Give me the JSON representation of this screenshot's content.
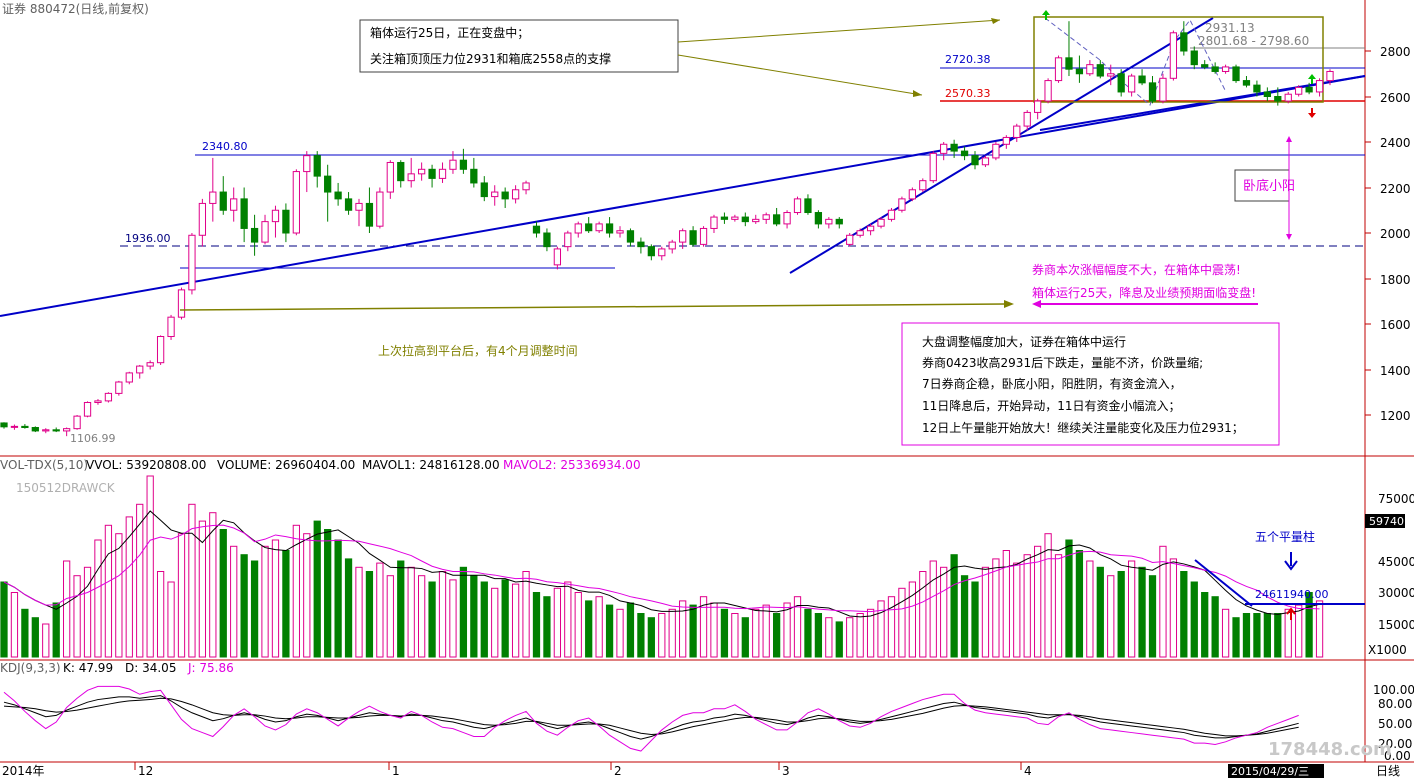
{
  "header": {
    "security": "证券 880472(日线,前复权)"
  },
  "price_panel": {
    "y_ticks": [
      "2800",
      "2600",
      "2400",
      "2200",
      "2000",
      "1800",
      "1600",
      "1400",
      "1200"
    ],
    "labels": {
      "high_2931": "2931.13",
      "range_label": "2801.68 - 2798.60",
      "level_2720": "2720.38",
      "level_2570": "2570.33",
      "level_2340": "2340.80",
      "level_1936": "1936.00",
      "low_1106": "1106.99"
    },
    "annotations": {
      "box_note_line1": "箱体运行25日，正在变盘中；",
      "box_note_line2": "关注箱顶顶压力位2931和箱底2558点的支撑",
      "low_yang": "卧底小阳",
      "pink_note_1": "券商本次涨幅幅度不大，在箱体中震荡!",
      "pink_note_2": "箱体运行25天，降息及业绩预期面临变盘!",
      "olive_note": "上次拉高到平台后，有4个月调整时间",
      "market_lines": [
        "大盘调整幅度加大，证券在箱体中运行",
        "券商0423收高2931后下跌走，量能不济，价跌量缩;",
        "7日券商企稳，卧底小阳，阳胜阴，有资金流入，",
        "11日降息后，开始异动，11日有资金小幅流入；",
        "12日上午量能开始放大！继续关注量能变化及压力位2931；"
      ]
    }
  },
  "volume_panel": {
    "header": {
      "indicator": "VOL-TDX(5,10)",
      "vvol": "VVOL: 53920808.00",
      "volume": "VOLUME: 26960404.00",
      "mavol1": "MAVOL1: 24816128.00",
      "mavol2": "MAVOL2: 25336934.00"
    },
    "watermark": "150512DRAWCK",
    "y_ticks": [
      "75000",
      "45000",
      "30000",
      "15000"
    ],
    "badge": "59740",
    "unit": "X1000",
    "five_bars_note": "五个平量柱",
    "level_label": "24611940.00"
  },
  "kdj_panel": {
    "header": {
      "indicator": "KDJ(9,3,3)",
      "k": "K: 47.99",
      "d": "D: 34.05",
      "j": "J: 75.86"
    },
    "y_ticks": [
      "100.00",
      "80.00",
      "50.00",
      "20.00",
      "0.00"
    ]
  },
  "x_axis": {
    "labels": [
      "2014年",
      "12",
      "1",
      "2",
      "3",
      "4"
    ],
    "date_badge": "2015/04/29/三",
    "period": "日线",
    "site": "178448.com"
  },
  "colors": {
    "up": "#e0008a",
    "down": "#008000",
    "line_blue": "#0000c8",
    "olive": "#808000",
    "magenta": "#e000e0",
    "red": "#e00000"
  },
  "chart_data": {
    "type": "candlestick",
    "title": "证券 880472(日线,前复权)",
    "y_range": [
      1080,
      2940
    ],
    "candles": [
      [
        1165,
        1168,
        1140,
        1148
      ],
      [
        1148,
        1158,
        1135,
        1150
      ],
      [
        1150,
        1160,
        1140,
        1145
      ],
      [
        1145,
        1150,
        1125,
        1130
      ],
      [
        1130,
        1142,
        1120,
        1135
      ],
      [
        1135,
        1145,
        1125,
        1130
      ],
      [
        1130,
        1145,
        1107,
        1140
      ],
      [
        1140,
        1200,
        1135,
        1195
      ],
      [
        1195,
        1260,
        1190,
        1255
      ],
      [
        1255,
        1270,
        1245,
        1262
      ],
      [
        1262,
        1300,
        1255,
        1295
      ],
      [
        1295,
        1350,
        1285,
        1345
      ],
      [
        1345,
        1390,
        1335,
        1385
      ],
      [
        1385,
        1420,
        1360,
        1415
      ],
      [
        1415,
        1440,
        1400,
        1430
      ],
      [
        1430,
        1550,
        1420,
        1545
      ],
      [
        1545,
        1640,
        1530,
        1630
      ],
      [
        1630,
        1760,
        1620,
        1750
      ],
      [
        1750,
        2000,
        1730,
        1990
      ],
      [
        1990,
        2150,
        1940,
        2130
      ],
      [
        2130,
        2330,
        2050,
        2180
      ],
      [
        2180,
        2250,
        2080,
        2100
      ],
      [
        2100,
        2200,
        2050,
        2150
      ],
      [
        2150,
        2200,
        1960,
        2020
      ],
      [
        2020,
        2080,
        1900,
        1960
      ],
      [
        1960,
        2080,
        1950,
        2050
      ],
      [
        2050,
        2120,
        1980,
        2100
      ],
      [
        2100,
        2130,
        1960,
        2000
      ],
      [
        2000,
        2280,
        1990,
        2270
      ],
      [
        2270,
        2360,
        2180,
        2340
      ],
      [
        2340,
        2360,
        2200,
        2250
      ],
      [
        2250,
        2300,
        2050,
        2180
      ],
      [
        2180,
        2220,
        2120,
        2150
      ],
      [
        2150,
        2180,
        2080,
        2100
      ],
      [
        2100,
        2150,
        2030,
        2130
      ],
      [
        2130,
        2200,
        2000,
        2030
      ],
      [
        2030,
        2200,
        2020,
        2180
      ],
      [
        2180,
        2320,
        2150,
        2310
      ],
      [
        2310,
        2320,
        2200,
        2230
      ],
      [
        2230,
        2330,
        2200,
        2260
      ],
      [
        2260,
        2310,
        2230,
        2280
      ],
      [
        2280,
        2300,
        2200,
        2240
      ],
      [
        2240,
        2310,
        2220,
        2280
      ],
      [
        2280,
        2360,
        2260,
        2320
      ],
      [
        2320,
        2370,
        2260,
        2280
      ],
      [
        2280,
        2330,
        2200,
        2220
      ],
      [
        2220,
        2250,
        2140,
        2160
      ],
      [
        2160,
        2210,
        2120,
        2180
      ],
      [
        2180,
        2200,
        2110,
        2150
      ],
      [
        2150,
        2210,
        2130,
        2190
      ],
      [
        2190,
        2230,
        2170,
        2220
      ],
      [
        2030,
        2050,
        1980,
        2000
      ],
      [
        2000,
        2020,
        1920,
        1940
      ],
      [
        1860,
        1940,
        1840,
        1930
      ],
      [
        1940,
        2010,
        1920,
        2000
      ],
      [
        2000,
        2050,
        1980,
        2040
      ],
      [
        2040,
        2070,
        2000,
        2010
      ],
      [
        2010,
        2050,
        2000,
        2040
      ],
      [
        2040,
        2070,
        1980,
        2000
      ],
      [
        2000,
        2030,
        1980,
        2010
      ],
      [
        2010,
        2020,
        1940,
        1960
      ],
      [
        1960,
        1980,
        1910,
        1940
      ],
      [
        1940,
        1950,
        1880,
        1900
      ],
      [
        1900,
        1940,
        1880,
        1930
      ],
      [
        1930,
        1970,
        1910,
        1960
      ],
      [
        1960,
        2020,
        1930,
        2010
      ],
      [
        2010,
        2030,
        1940,
        1950
      ],
      [
        1950,
        2030,
        1940,
        2020
      ],
      [
        2020,
        2080,
        2000,
        2070
      ],
      [
        2070,
        2090,
        2040,
        2060
      ],
      [
        2060,
        2080,
        2050,
        2070
      ],
      [
        2070,
        2090,
        2030,
        2050
      ],
      [
        2050,
        2080,
        2040,
        2060
      ],
      [
        2060,
        2090,
        2040,
        2080
      ],
      [
        2080,
        2110,
        2030,
        2040
      ],
      [
        2040,
        2100,
        2020,
        2090
      ],
      [
        2090,
        2160,
        2080,
        2150
      ],
      [
        2150,
        2170,
        2080,
        2090
      ],
      [
        2090,
        2100,
        2020,
        2040
      ],
      [
        2040,
        2070,
        2020,
        2060
      ],
      [
        2060,
        2070,
        2020,
        2040
      ],
      [
        1950,
        2000,
        1940,
        1990
      ],
      [
        1990,
        2020,
        1980,
        2010
      ],
      [
        2010,
        2040,
        1990,
        2030
      ],
      [
        2030,
        2070,
        2020,
        2060
      ],
      [
        2060,
        2110,
        2050,
        2100
      ],
      [
        2100,
        2160,
        2090,
        2150
      ],
      [
        2150,
        2200,
        2140,
        2190
      ],
      [
        2190,
        2240,
        2180,
        2230
      ],
      [
        2230,
        2360,
        2220,
        2350
      ],
      [
        2350,
        2400,
        2320,
        2390
      ],
      [
        2390,
        2410,
        2330,
        2360
      ],
      [
        2360,
        2380,
        2320,
        2340
      ],
      [
        2340,
        2360,
        2280,
        2300
      ],
      [
        2300,
        2340,
        2290,
        2330
      ],
      [
        2330,
        2400,
        2320,
        2390
      ],
      [
        2390,
        2430,
        2370,
        2420
      ],
      [
        2420,
        2480,
        2400,
        2470
      ],
      [
        2470,
        2540,
        2450,
        2530
      ],
      [
        2530,
        2590,
        2500,
        2580
      ],
      [
        2580,
        2680,
        2570,
        2670
      ],
      [
        2670,
        2780,
        2660,
        2770
      ],
      [
        2770,
        2931,
        2690,
        2720
      ],
      [
        2720,
        2780,
        2660,
        2700
      ],
      [
        2700,
        2760,
        2690,
        2740
      ],
      [
        2740,
        2760,
        2680,
        2690
      ],
      [
        2690,
        2740,
        2650,
        2700
      ],
      [
        2700,
        2720,
        2600,
        2620
      ],
      [
        2620,
        2700,
        2600,
        2690
      ],
      [
        2690,
        2720,
        2650,
        2660
      ],
      [
        2660,
        2690,
        2570,
        2580
      ],
      [
        2580,
        2700,
        2570,
        2680
      ],
      [
        2680,
        2890,
        2670,
        2880
      ],
      [
        2880,
        2931,
        2780,
        2800
      ],
      [
        2800,
        2820,
        2720,
        2740
      ],
      [
        2740,
        2760,
        2720,
        2730
      ],
      [
        2730,
        2750,
        2700,
        2710
      ],
      [
        2710,
        2740,
        2700,
        2730
      ],
      [
        2730,
        2740,
        2660,
        2670
      ],
      [
        2670,
        2690,
        2640,
        2650
      ],
      [
        2650,
        2670,
        2600,
        2620
      ],
      [
        2620,
        2640,
        2580,
        2600
      ],
      [
        2600,
        2640,
        2560,
        2580
      ],
      [
        2580,
        2620,
        2570,
        2610
      ],
      [
        2610,
        2650,
        2600,
        2640
      ],
      [
        2640,
        2660,
        2610,
        2620
      ],
      [
        2620,
        2680,
        2600,
        2670
      ],
      [
        2670,
        2720,
        2650,
        2710
      ]
    ],
    "volume": [
      35,
      30,
      22,
      18,
      15,
      25,
      45,
      38,
      42,
      55,
      62,
      58,
      66,
      72,
      86,
      40,
      35,
      58,
      72,
      64,
      68,
      60,
      52,
      48,
      45,
      52,
      55,
      50,
      62,
      58,
      64,
      60,
      55,
      46,
      42,
      40,
      44,
      38,
      45,
      42,
      38,
      35,
      40,
      36,
      42,
      38,
      35,
      32,
      36,
      34,
      40,
      30,
      28,
      32,
      35,
      30,
      26,
      28,
      24,
      22,
      25,
      20,
      18,
      20,
      22,
      26,
      24,
      28,
      25,
      22,
      20,
      18,
      22,
      24,
      20,
      25,
      28,
      22,
      20,
      18,
      16,
      18,
      20,
      22,
      26,
      28,
      32,
      35,
      40,
      45,
      42,
      48,
      38,
      35,
      42,
      46,
      50,
      44,
      48,
      52,
      58,
      48,
      55,
      50,
      45,
      42,
      38,
      40,
      45,
      42,
      38,
      52,
      46,
      40,
      35,
      30,
      28,
      22,
      18,
      20,
      20,
      20,
      20,
      22,
      24,
      30,
      26
    ],
    "kdj": {
      "K": [
        80,
        76,
        70,
        64,
        58,
        60,
        68,
        74,
        80,
        84,
        86,
        88,
        88,
        86,
        88,
        90,
        82,
        72,
        64,
        58,
        52,
        55,
        60,
        64,
        60,
        54,
        50,
        52,
        58,
        62,
        60,
        56,
        52,
        56,
        60,
        64,
        62,
        60,
        58,
        62,
        60,
        56,
        52,
        50,
        46,
        42,
        40,
        44,
        48,
        52,
        56,
        50,
        44,
        40,
        44,
        48,
        50,
        46,
        40,
        34,
        28,
        24,
        28,
        34,
        40,
        46,
        50,
        52,
        56,
        58,
        62,
        60,
        56,
        52,
        48,
        46,
        50,
        56,
        60,
        58,
        54,
        50,
        48,
        50,
        54,
        58,
        62,
        66,
        70,
        74,
        78,
        80,
        76,
        72,
        70,
        68,
        66,
        64,
        62,
        58,
        56,
        60,
        62,
        58,
        54,
        50,
        48,
        46,
        44,
        42,
        40,
        38,
        36,
        34,
        30,
        28,
        26,
        26,
        28,
        30,
        32,
        36,
        40,
        44,
        48
      ],
      "D": [
        74,
        73,
        72,
        70,
        67,
        65,
        66,
        68,
        71,
        74,
        77,
        80,
        82,
        83,
        84,
        86,
        85,
        81,
        76,
        70,
        64,
        61,
        60,
        61,
        61,
        59,
        56,
        55,
        56,
        58,
        58,
        57,
        56,
        56,
        57,
        59,
        60,
        60,
        59,
        60,
        60,
        59,
        57,
        55,
        52,
        49,
        46,
        45,
        46,
        48,
        51,
        51,
        48,
        45,
        45,
        46,
        47,
        47,
        45,
        41,
        37,
        33,
        31,
        32,
        35,
        39,
        43,
        46,
        49,
        52,
        55,
        57,
        57,
        55,
        53,
        50,
        50,
        52,
        55,
        56,
        55,
        53,
        51,
        51,
        52,
        54,
        57,
        60,
        63,
        67,
        71,
        74,
        75,
        74,
        73,
        71,
        69,
        67,
        65,
        63,
        61,
        61,
        61,
        60,
        58,
        55,
        53,
        51,
        49,
        47,
        45,
        43,
        41,
        39,
        36,
        33,
        31,
        29,
        29,
        30,
        31,
        33,
        36,
        39,
        42
      ],
      "J": [
        95,
        82,
        66,
        52,
        40,
        50,
        72,
        86,
        98,
        104,
        104,
        104,
        100,
        92,
        96,
        98,
        76,
        54,
        40,
        34,
        28,
        43,
        60,
        70,
        58,
        44,
        38,
        46,
        62,
        70,
        64,
        54,
        44,
        56,
        66,
        74,
        66,
        60,
        56,
        66,
        60,
        50,
        42,
        40,
        34,
        28,
        28,
        42,
        52,
        60,
        66,
        48,
        36,
        30,
        42,
        52,
        56,
        44,
        30,
        20,
        10,
        6,
        22,
        38,
        50,
        60,
        64,
        64,
        70,
        70,
        76,
        66,
        54,
        46,
        38,
        38,
        50,
        64,
        70,
        62,
        52,
        44,
        42,
        48,
        58,
        66,
        72,
        78,
        84,
        88,
        92,
        92,
        78,
        68,
        64,
        62,
        60,
        58,
        56,
        48,
        46,
        58,
        64,
        54,
        46,
        40,
        38,
        36,
        34,
        32,
        30,
        28,
        26,
        24,
        18,
        18,
        16,
        20,
        26,
        30,
        34,
        42,
        48,
        54,
        60
      ]
    },
    "x_labels": [
      "2014年",
      "12",
      "1",
      "2",
      "3",
      "4"
    ]
  }
}
